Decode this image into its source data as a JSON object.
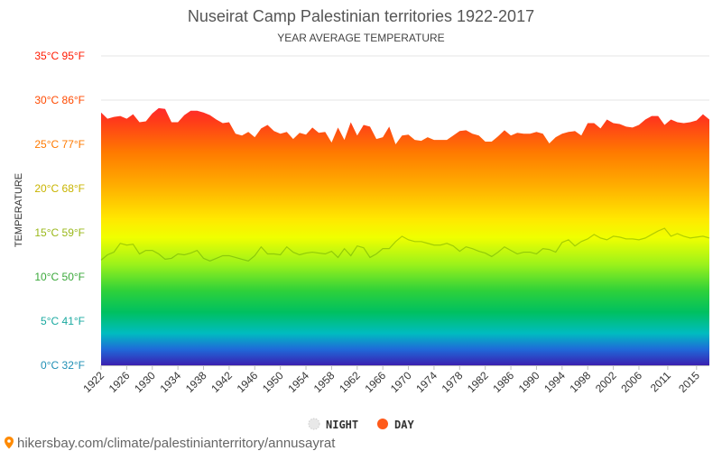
{
  "chart_data": {
    "type": "area",
    "title": "Nuseirat Camp Palestinian territories 1922-2017",
    "subtitle": "YEAR AVERAGE TEMPERATURE",
    "ylabel": "TEMPERATURE",
    "xlabel": "",
    "ylim": [
      0,
      35
    ],
    "xlim": [
      1922,
      2017
    ],
    "grid": true,
    "legend_placement": "bottom",
    "y_ticks": [
      {
        "value": 0,
        "label": "0°C 32°F",
        "color": "#1f8fb5"
      },
      {
        "value": 5,
        "label": "5°C 41°F",
        "color": "#1aa9a0"
      },
      {
        "value": 10,
        "label": "10°C 50°F",
        "color": "#3aa83a"
      },
      {
        "value": 15,
        "label": "15°C 59°F",
        "color": "#9ab81a"
      },
      {
        "value": 20,
        "label": "20°C 68°F",
        "color": "#c8b400"
      },
      {
        "value": 25,
        "label": "25°C 77°F",
        "color": "#ff7a00"
      },
      {
        "value": 30,
        "label": "30°C 86°F",
        "color": "#ff4a00"
      },
      {
        "value": 35,
        "label": "35°C 95°F",
        "color": "#ff1a00"
      }
    ],
    "x_tick_labels": [
      "1922",
      "1926",
      "1930",
      "1934",
      "1938",
      "1942",
      "1946",
      "1950",
      "1954",
      "1958",
      "1962",
      "1966",
      "1970",
      "1974",
      "1978",
      "1982",
      "1986",
      "1990",
      "1994",
      "1998",
      "2002",
      "2006",
      "2011",
      "2015"
    ],
    "x_tick_years": [
      1922,
      1926,
      1930,
      1934,
      1938,
      1942,
      1946,
      1950,
      1954,
      1958,
      1962,
      1966,
      1970,
      1974,
      1978,
      1982,
      1986,
      1990,
      1994,
      1998,
      2002,
      2006,
      2010.5,
      2015
    ],
    "x": [
      1922,
      1923,
      1924,
      1925,
      1926,
      1927,
      1928,
      1929,
      1930,
      1931,
      1932,
      1933,
      1934,
      1935,
      1936,
      1937,
      1938,
      1939,
      1940,
      1941,
      1942,
      1943,
      1944,
      1945,
      1946,
      1947,
      1948,
      1949,
      1950,
      1951,
      1952,
      1953,
      1954,
      1955,
      1956,
      1957,
      1958,
      1959,
      1960,
      1961,
      1962,
      1963,
      1964,
      1965,
      1966,
      1967,
      1968,
      1969,
      1970,
      1971,
      1972,
      1973,
      1974,
      1975,
      1976,
      1977,
      1978,
      1979,
      1980,
      1981,
      1982,
      1983,
      1984,
      1985,
      1986,
      1987,
      1988,
      1989,
      1990,
      1991,
      1992,
      1993,
      1994,
      1995,
      1996,
      1997,
      1998,
      1999,
      2000,
      2001,
      2002,
      2003,
      2004,
      2005,
      2006,
      2007,
      2008,
      2009,
      2010,
      2011,
      2012,
      2013,
      2014,
      2015,
      2016,
      2017
    ],
    "series": [
      {
        "name": "DAY",
        "color": "#ff5a1a",
        "values": [
          28.6,
          27.9,
          28.1,
          28.2,
          27.9,
          28.4,
          27.5,
          27.6,
          28.5,
          29.1,
          29.0,
          27.5,
          27.5,
          28.3,
          28.8,
          28.8,
          28.6,
          28.3,
          27.8,
          27.4,
          27.5,
          26.2,
          26.0,
          26.4,
          25.8,
          26.8,
          27.2,
          26.5,
          26.2,
          26.4,
          25.6,
          26.3,
          26.1,
          26.9,
          26.3,
          26.4,
          25.2,
          26.9,
          25.5,
          27.5,
          26.0,
          27.2,
          27.0,
          25.6,
          25.8,
          27.0,
          25.0,
          26.0,
          26.1,
          25.5,
          25.4,
          25.8,
          25.5,
          25.5,
          25.5,
          26.0,
          26.5,
          26.6,
          26.2,
          26.0,
          25.3,
          25.3,
          25.9,
          26.6,
          26.0,
          26.3,
          26.2,
          26.2,
          26.4,
          26.2,
          25.1,
          25.8,
          26.2,
          26.4,
          26.5,
          26.0,
          27.4,
          27.4,
          26.8,
          27.8,
          27.4,
          27.3,
          27.0,
          26.9,
          27.2,
          27.8,
          28.2,
          28.2,
          27.2,
          27.8,
          27.5,
          27.4,
          27.5,
          27.7,
          28.4,
          27.8
        ]
      },
      {
        "name": "NIGHT",
        "color": "#e8e8e8",
        "values": [
          11.9,
          12.5,
          12.8,
          13.8,
          13.6,
          13.7,
          12.6,
          13.0,
          13.0,
          12.6,
          12.0,
          12.1,
          12.6,
          12.5,
          12.7,
          13.0,
          12.1,
          11.8,
          12.1,
          12.4,
          12.4,
          12.2,
          12.0,
          11.8,
          12.4,
          13.4,
          12.6,
          12.6,
          12.5,
          13.4,
          12.8,
          12.5,
          12.7,
          12.8,
          12.7,
          12.6,
          12.9,
          12.2,
          13.2,
          12.4,
          13.5,
          13.3,
          12.2,
          12.6,
          13.2,
          13.2,
          14.0,
          14.6,
          14.2,
          14.0,
          14.0,
          13.8,
          13.6,
          13.6,
          13.8,
          13.5,
          12.9,
          13.4,
          13.2,
          12.9,
          12.7,
          12.3,
          12.8,
          13.4,
          13.0,
          12.6,
          12.8,
          12.8,
          12.6,
          13.2,
          13.1,
          12.8,
          13.9,
          14.2,
          13.5,
          14.0,
          14.3,
          14.8,
          14.4,
          14.2,
          14.6,
          14.5,
          14.3,
          14.3,
          14.2,
          14.4,
          14.8,
          15.2,
          15.5,
          14.6,
          14.9,
          14.6,
          14.4,
          14.5,
          14.6,
          14.4
        ]
      }
    ],
    "legend": [
      {
        "name": "NIGHT",
        "marker_color": "#e8e8e8"
      },
      {
        "name": "DAY",
        "marker_color": "#ff5a1a"
      }
    ],
    "source_text": "hikersbay.com/climate/palestinianterritory/annusayrat"
  }
}
